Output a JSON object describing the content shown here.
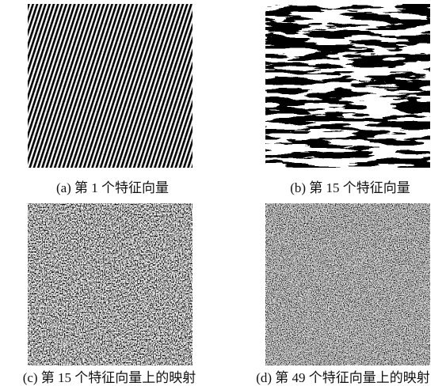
{
  "figure": {
    "panels": [
      {
        "caption": "(a) 第 1 个特征向量"
      },
      {
        "caption": "(b) 第 15 个特征向量"
      },
      {
        "caption": "(c) 第 15 个特征向量上的映射"
      },
      {
        "caption": "(d) 第 49 个特征向量上的映射"
      }
    ]
  }
}
